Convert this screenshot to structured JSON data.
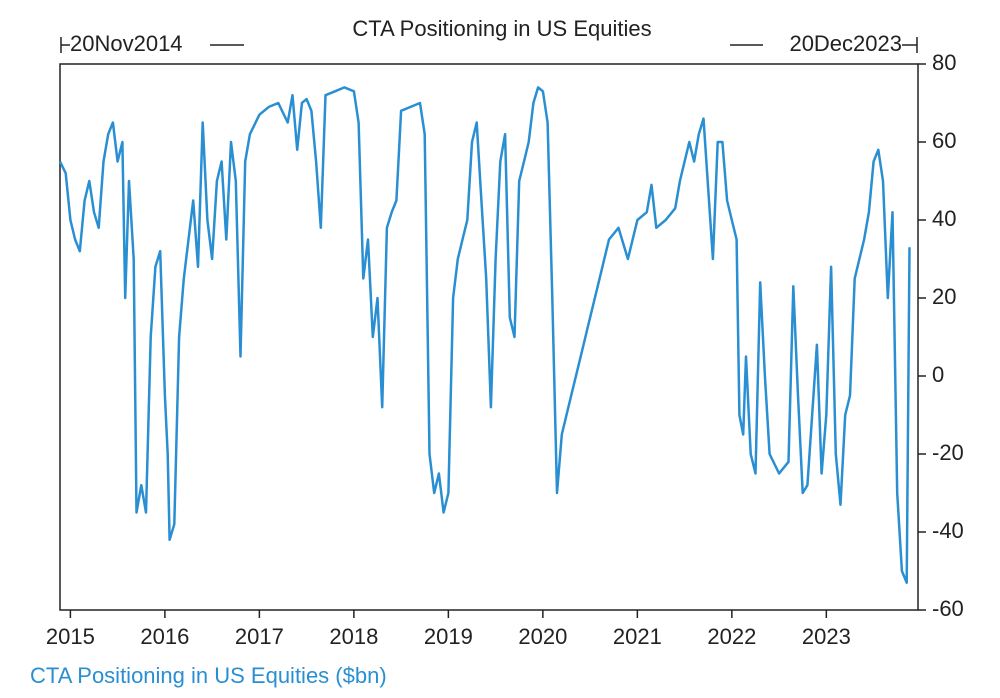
{
  "chart_data": {
    "type": "line",
    "title": "CTA Positioning in US Equities",
    "start_label": "20Nov2014",
    "end_label": "20Dec2023",
    "xlim": [
      2014.89,
      2023.97
    ],
    "xticks": [
      2015,
      2016,
      2017,
      2018,
      2019,
      2020,
      2021,
      2022,
      2023
    ],
    "ylim": [
      -60,
      80
    ],
    "yticks": [
      -60,
      -40,
      -20,
      0,
      20,
      40,
      60,
      80
    ],
    "x": [
      2014.89,
      2014.95,
      2015.0,
      2015.05,
      2015.1,
      2015.15,
      2015.2,
      2015.25,
      2015.3,
      2015.35,
      2015.4,
      2015.45,
      2015.5,
      2015.55,
      2015.58,
      2015.62,
      2015.67,
      2015.7,
      2015.75,
      2015.8,
      2015.85,
      2015.9,
      2015.95,
      2016.0,
      2016.03,
      2016.05,
      2016.1,
      2016.15,
      2016.2,
      2016.25,
      2016.3,
      2016.35,
      2016.4,
      2016.45,
      2016.5,
      2016.55,
      2016.6,
      2016.65,
      2016.7,
      2016.75,
      2016.8,
      2016.85,
      2016.9,
      2017.0,
      2017.1,
      2017.2,
      2017.3,
      2017.35,
      2017.4,
      2017.45,
      2017.5,
      2017.55,
      2017.6,
      2017.65,
      2017.7,
      2017.8,
      2017.9,
      2018.0,
      2018.05,
      2018.1,
      2018.15,
      2018.2,
      2018.25,
      2018.3,
      2018.35,
      2018.4,
      2018.45,
      2018.5,
      2018.6,
      2018.7,
      2018.75,
      2018.8,
      2018.85,
      2018.9,
      2018.95,
      2019.0,
      2019.05,
      2019.1,
      2019.15,
      2019.2,
      2019.25,
      2019.3,
      2019.35,
      2019.4,
      2019.45,
      2019.5,
      2019.55,
      2019.6,
      2019.65,
      2019.7,
      2019.75,
      2019.8,
      2019.85,
      2019.9,
      2019.95,
      2020.0,
      2020.05,
      2020.1,
      2020.15,
      2020.2,
      2020.3,
      2020.4,
      2020.5,
      2020.6,
      2020.7,
      2020.8,
      2020.9,
      2021.0,
      2021.1,
      2021.15,
      2021.2,
      2021.3,
      2021.4,
      2021.45,
      2021.5,
      2021.55,
      2021.6,
      2021.65,
      2021.7,
      2021.75,
      2021.8,
      2021.85,
      2021.9,
      2021.95,
      2022.0,
      2022.05,
      2022.08,
      2022.12,
      2022.15,
      2022.2,
      2022.25,
      2022.3,
      2022.35,
      2022.4,
      2022.5,
      2022.6,
      2022.65,
      2022.7,
      2022.75,
      2022.8,
      2022.9,
      2022.95,
      2023.0,
      2023.05,
      2023.1,
      2023.15,
      2023.2,
      2023.25,
      2023.3,
      2023.4,
      2023.45,
      2023.5,
      2023.55,
      2023.6,
      2023.65,
      2023.7,
      2023.75,
      2023.8,
      2023.85,
      2023.88
    ],
    "series": [
      {
        "name": "CTA Positioning in US Equities ($bn)",
        "color": "#2a8fd2",
        "values": [
          55,
          52,
          40,
          35,
          32,
          45,
          50,
          42,
          38,
          55,
          62,
          65,
          55,
          60,
          20,
          50,
          30,
          -35,
          -28,
          -35,
          10,
          28,
          32,
          -5,
          -20,
          -42,
          -38,
          10,
          25,
          35,
          45,
          28,
          65,
          40,
          30,
          50,
          55,
          35,
          60,
          50,
          5,
          55,
          62,
          67,
          69,
          70,
          65,
          72,
          58,
          70,
          71,
          68,
          55,
          38,
          72,
          73,
          74,
          73,
          65,
          25,
          35,
          10,
          20,
          -8,
          38,
          42,
          45,
          68,
          69,
          70,
          62,
          -20,
          -30,
          -25,
          -35,
          -30,
          20,
          30,
          35,
          40,
          60,
          65,
          45,
          25,
          -8,
          30,
          55,
          62,
          15,
          10,
          50,
          55,
          60,
          70,
          74,
          73,
          65,
          20,
          -30,
          -15,
          -5,
          5,
          15,
          25,
          35,
          38,
          30,
          40,
          42,
          49,
          38,
          40,
          43,
          50,
          55,
          60,
          55,
          62,
          66,
          48,
          30,
          60,
          60,
          45,
          40,
          35,
          -10,
          -15,
          5,
          -20,
          -25,
          24,
          0,
          -20,
          -25,
          -22,
          23,
          -5,
          -30,
          -28,
          8,
          -25,
          -10,
          28,
          -20,
          -33,
          -10,
          -5,
          25,
          35,
          42,
          55,
          58,
          50,
          20,
          42,
          -30,
          -50,
          -53,
          33
        ]
      }
    ]
  }
}
